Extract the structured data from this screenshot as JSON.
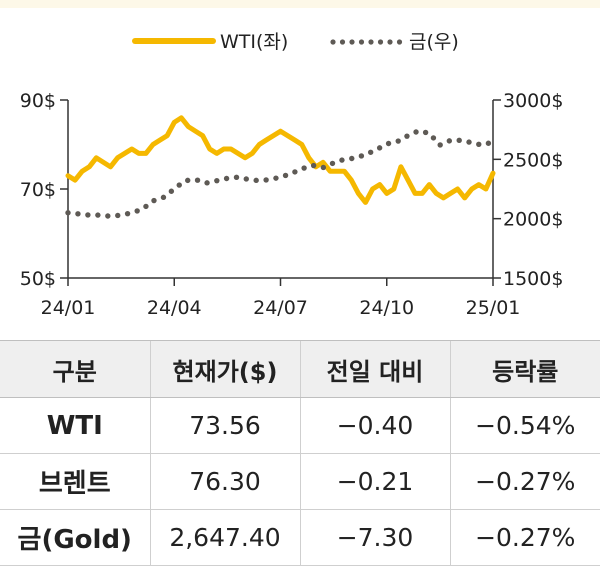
{
  "legend": {
    "wti": "WTI(좌)",
    "gold": "금(우)"
  },
  "chart_data": {
    "type": "line",
    "x_ticks": [
      "24/01",
      "24/04",
      "24/07",
      "24/10",
      "25/01"
    ],
    "y_left": {
      "ticks": [
        "90$",
        "70$",
        "50$"
      ],
      "range": [
        50,
        90
      ]
    },
    "y_right": {
      "ticks": [
        "3000$",
        "2500$",
        "2000$",
        "1500$"
      ],
      "range": [
        1500,
        3000
      ]
    },
    "x_range": [
      0,
      12
    ],
    "grid": false,
    "legend_position": "top-center",
    "series": [
      {
        "name": "WTI(좌)",
        "axis": "left",
        "color": "#f5b800",
        "style": "solid",
        "points": [
          [
            0.0,
            73
          ],
          [
            0.2,
            72
          ],
          [
            0.4,
            74
          ],
          [
            0.6,
            75
          ],
          [
            0.8,
            77
          ],
          [
            1.0,
            76
          ],
          [
            1.2,
            75
          ],
          [
            1.4,
            77
          ],
          [
            1.6,
            78
          ],
          [
            1.8,
            79
          ],
          [
            2.0,
            78
          ],
          [
            2.2,
            78
          ],
          [
            2.4,
            80
          ],
          [
            2.6,
            81
          ],
          [
            2.8,
            82
          ],
          [
            3.0,
            85
          ],
          [
            3.2,
            86
          ],
          [
            3.4,
            84
          ],
          [
            3.6,
            83
          ],
          [
            3.8,
            82
          ],
          [
            4.0,
            79
          ],
          [
            4.2,
            78
          ],
          [
            4.4,
            79
          ],
          [
            4.6,
            79
          ],
          [
            4.8,
            78
          ],
          [
            5.0,
            77
          ],
          [
            5.2,
            78
          ],
          [
            5.4,
            80
          ],
          [
            5.6,
            81
          ],
          [
            5.8,
            82
          ],
          [
            6.0,
            83
          ],
          [
            6.2,
            82
          ],
          [
            6.4,
            81
          ],
          [
            6.6,
            80
          ],
          [
            6.8,
            77
          ],
          [
            7.0,
            75
          ],
          [
            7.2,
            76
          ],
          [
            7.4,
            74
          ],
          [
            7.6,
            74
          ],
          [
            7.8,
            74
          ],
          [
            8.0,
            72
          ],
          [
            8.2,
            69
          ],
          [
            8.4,
            67
          ],
          [
            8.6,
            70
          ],
          [
            8.8,
            71
          ],
          [
            9.0,
            69
          ],
          [
            9.2,
            70
          ],
          [
            9.4,
            75
          ],
          [
            9.6,
            72
          ],
          [
            9.8,
            69
          ],
          [
            10.0,
            69
          ],
          [
            10.2,
            71
          ],
          [
            10.4,
            69
          ],
          [
            10.6,
            68
          ],
          [
            10.8,
            69
          ],
          [
            11.0,
            70
          ],
          [
            11.2,
            68
          ],
          [
            11.4,
            70
          ],
          [
            11.6,
            71
          ],
          [
            11.8,
            70
          ],
          [
            12.0,
            73.56
          ]
        ]
      },
      {
        "name": "금(우)",
        "axis": "right",
        "color": "#5e5a55",
        "style": "dotted",
        "points": [
          [
            0.0,
            2050
          ],
          [
            0.3,
            2040
          ],
          [
            0.6,
            2030
          ],
          [
            0.9,
            2030
          ],
          [
            1.2,
            2020
          ],
          [
            1.5,
            2030
          ],
          [
            1.8,
            2050
          ],
          [
            2.1,
            2080
          ],
          [
            2.4,
            2150
          ],
          [
            2.7,
            2180
          ],
          [
            3.0,
            2250
          ],
          [
            3.3,
            2320
          ],
          [
            3.6,
            2330
          ],
          [
            3.9,
            2300
          ],
          [
            4.2,
            2320
          ],
          [
            4.5,
            2340
          ],
          [
            4.8,
            2350
          ],
          [
            5.1,
            2330
          ],
          [
            5.4,
            2320
          ],
          [
            5.7,
            2330
          ],
          [
            6.0,
            2350
          ],
          [
            6.3,
            2380
          ],
          [
            6.6,
            2420
          ],
          [
            6.9,
            2450
          ],
          [
            7.2,
            2430
          ],
          [
            7.5,
            2470
          ],
          [
            7.8,
            2500
          ],
          [
            8.1,
            2510
          ],
          [
            8.4,
            2540
          ],
          [
            8.7,
            2580
          ],
          [
            9.0,
            2630
          ],
          [
            9.3,
            2650
          ],
          [
            9.6,
            2700
          ],
          [
            9.9,
            2740
          ],
          [
            10.2,
            2720
          ],
          [
            10.5,
            2620
          ],
          [
            10.8,
            2660
          ],
          [
            11.1,
            2660
          ],
          [
            11.4,
            2640
          ],
          [
            11.7,
            2620
          ],
          [
            12.0,
            2647.4
          ]
        ]
      }
    ]
  },
  "table": {
    "headers": [
      "구분",
      "현재가($)",
      "전일 대비",
      "등락률"
    ],
    "rows": [
      [
        "WTI",
        "73.56",
        "−0.40",
        "−0.54%"
      ],
      [
        "브렌트",
        "76.30",
        "−0.21",
        "−0.27%"
      ],
      [
        "금(Gold)",
        "2,647.40",
        "−7.30",
        "−0.27%"
      ]
    ]
  }
}
